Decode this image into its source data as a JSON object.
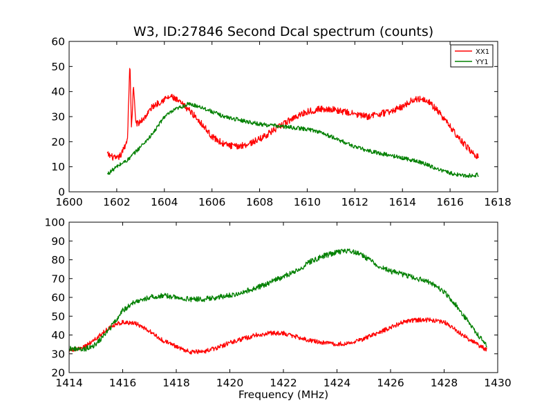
{
  "title": "W3, ID:27846 Second Dcal spectrum (counts)",
  "xlabel": "Frequency (MHz)",
  "chart_data": [
    {
      "type": "line",
      "title": "W3, ID:27846 Second Dcal spectrum (counts)",
      "xlabel": "",
      "ylabel": "",
      "xlim": [
        1600,
        1618
      ],
      "ylim": [
        0,
        60
      ],
      "xticks": [
        "1600",
        "1602",
        "1604",
        "1606",
        "1608",
        "1610",
        "1612",
        "1614",
        "1616",
        "1618"
      ],
      "yticks": [
        "0",
        "10",
        "20",
        "30",
        "40",
        "50",
        "60"
      ],
      "grid": false,
      "legend": "top-right",
      "series": [
        {
          "name": "XX1",
          "color": "#ff0000",
          "noise": 1.3,
          "x": [
            1601.6,
            1602.0,
            1602.2,
            1602.45,
            1602.55,
            1602.62,
            1602.7,
            1602.8,
            1602.9,
            1603.2,
            1603.5,
            1604.0,
            1604.3,
            1604.6,
            1605.0,
            1605.5,
            1606.0,
            1606.5,
            1607.0,
            1607.5,
            1608.0,
            1608.5,
            1609.0,
            1609.5,
            1610.0,
            1610.5,
            1611.0,
            1611.5,
            1612.0,
            1612.5,
            1613.0,
            1613.5,
            1614.0,
            1614.5,
            1615.0,
            1615.5,
            1616.0,
            1616.5,
            1617.0,
            1617.2
          ],
          "y": [
            15,
            13,
            15,
            21,
            52,
            25,
            42,
            28,
            27,
            30,
            34,
            37,
            38,
            36,
            33,
            28,
            22,
            19,
            18,
            19,
            21,
            24,
            27,
            30,
            32,
            33,
            33,
            32,
            31,
            30,
            31,
            32,
            34,
            37,
            37,
            32,
            26,
            20,
            15,
            14
          ]
        },
        {
          "name": "YY1",
          "color": "#008000",
          "noise": 0.8,
          "x": [
            1601.6,
            1602.0,
            1602.5,
            1603.0,
            1603.5,
            1604.0,
            1604.5,
            1605.0,
            1605.5,
            1606.0,
            1606.5,
            1607.0,
            1607.5,
            1608.0,
            1608.5,
            1609.0,
            1609.5,
            1610.0,
            1610.5,
            1611.0,
            1611.5,
            1612.0,
            1612.5,
            1613.0,
            1613.5,
            1614.0,
            1614.5,
            1615.0,
            1615.5,
            1616.0,
            1616.5,
            1617.0,
            1617.2
          ],
          "y": [
            7,
            10,
            13,
            18,
            23,
            30,
            33,
            35,
            34,
            32,
            30,
            29,
            28,
            27,
            26.5,
            26,
            25.5,
            25,
            24,
            22,
            20,
            18,
            16.5,
            15.5,
            14.5,
            13.5,
            12.5,
            11,
            9,
            7.5,
            6.5,
            6.5,
            7
          ]
        }
      ]
    },
    {
      "type": "line",
      "title": "",
      "xlabel": "Frequency (MHz)",
      "ylabel": "",
      "xlim": [
        1414,
        1430
      ],
      "ylim": [
        20,
        100
      ],
      "xticks": [
        "1414",
        "1416",
        "1418",
        "1420",
        "1422",
        "1424",
        "1426",
        "1428",
        "1430"
      ],
      "yticks": [
        "20",
        "30",
        "40",
        "50",
        "60",
        "70",
        "80",
        "90",
        "100"
      ],
      "grid": false,
      "series": [
        {
          "color": "#ff0000",
          "noise": 1.2,
          "x": [
            1414.0,
            1414.5,
            1415.0,
            1415.5,
            1416.0,
            1416.5,
            1417.0,
            1417.5,
            1418.0,
            1418.5,
            1419.0,
            1419.5,
            1420.0,
            1420.5,
            1421.0,
            1421.5,
            1422.0,
            1422.5,
            1423.0,
            1423.5,
            1424.0,
            1424.5,
            1425.0,
            1425.5,
            1426.0,
            1426.5,
            1427.0,
            1427.5,
            1428.0,
            1428.5,
            1429.0,
            1429.6
          ],
          "y": [
            32,
            33,
            38,
            44,
            47,
            46,
            42,
            37,
            34,
            31,
            31,
            33,
            36,
            38,
            40,
            41,
            41,
            39,
            37,
            36,
            35,
            36,
            38,
            41,
            44,
            47,
            48,
            48,
            47,
            42,
            37,
            32
          ]
        },
        {
          "color": "#008000",
          "noise": 1.4,
          "x": [
            1414.0,
            1414.5,
            1415.0,
            1415.5,
            1416.0,
            1416.5,
            1417.0,
            1417.5,
            1418.0,
            1418.5,
            1419.0,
            1419.5,
            1420.0,
            1420.5,
            1421.0,
            1421.5,
            1422.0,
            1422.5,
            1423.0,
            1423.5,
            1424.0,
            1424.5,
            1425.0,
            1425.5,
            1426.0,
            1426.5,
            1427.0,
            1427.5,
            1428.0,
            1428.5,
            1429.0,
            1429.6
          ],
          "y": [
            33,
            32,
            35,
            43,
            53,
            58,
            60,
            61,
            60,
            59,
            59,
            60,
            61,
            63,
            65,
            68,
            71,
            74,
            79,
            82,
            84,
            85,
            82,
            77,
            74,
            72,
            70,
            68,
            63,
            55,
            45,
            34
          ]
        }
      ]
    }
  ]
}
